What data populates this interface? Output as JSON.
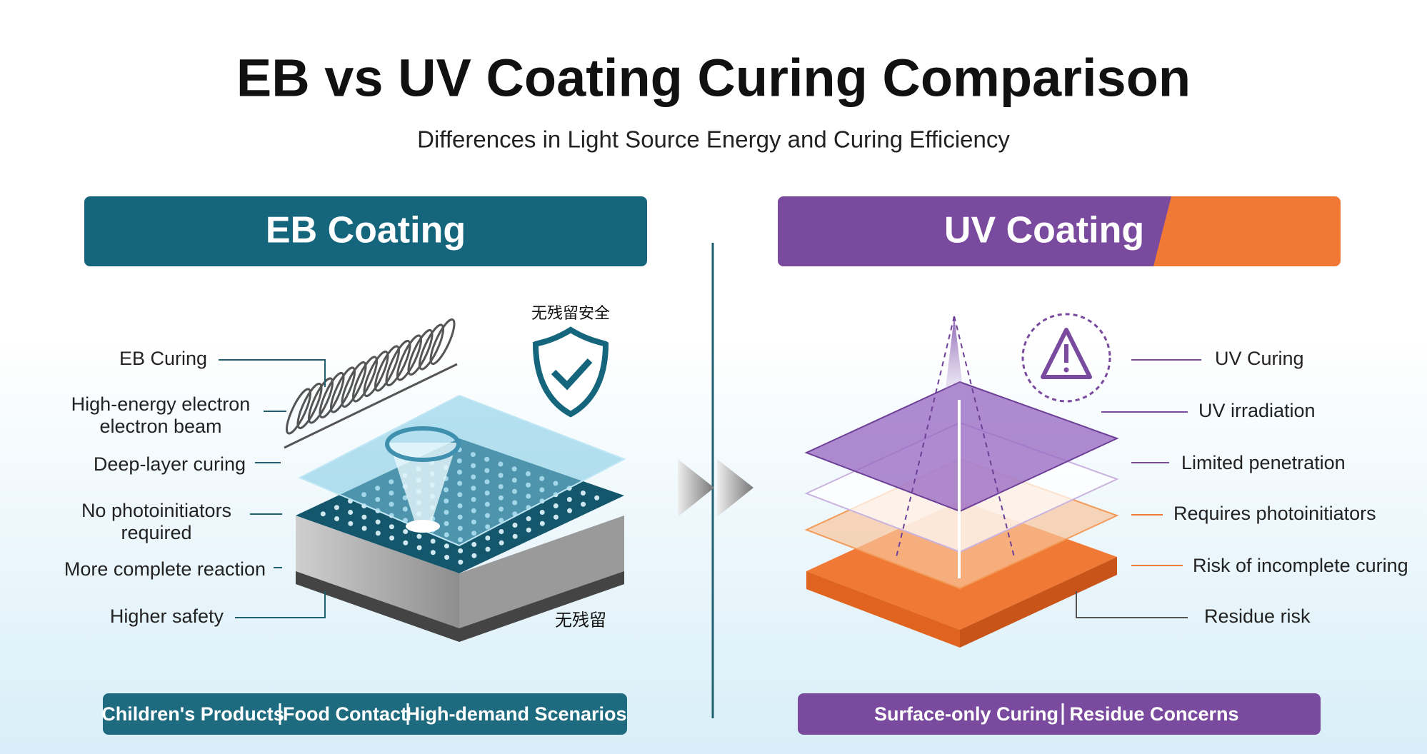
{
  "header": {
    "title": "EB vs UV Coating Curing Comparison",
    "subtitle": "Differences in Light Source Energy and Curing Efficiency"
  },
  "left": {
    "title": "EB Coating",
    "badge": "无残留安全",
    "bottom_note": "无残留",
    "labels": [
      {
        "lines": [
          "EB Curing"
        ]
      },
      {
        "lines": [
          "High-energy electron",
          "electron beam"
        ]
      },
      {
        "lines": [
          "Deep-layer curing"
        ]
      },
      {
        "lines": [
          "No photoinitiators",
          "required"
        ]
      },
      {
        "lines": [
          "More complete reaction"
        ]
      },
      {
        "lines": [
          "Higher safety"
        ]
      }
    ],
    "footer": [
      "Children's Products",
      "Food Contact",
      "High-demand Scenarios"
    ]
  },
  "right": {
    "title": "UV Coating",
    "labels": [
      {
        "lines": [
          "UV Curing"
        ]
      },
      {
        "lines": [
          "UV irradiation"
        ]
      },
      {
        "lines": [
          "Limited penetration"
        ]
      },
      {
        "lines": [
          "Requires photoinitiators"
        ]
      },
      {
        "lines": [
          "Risk of incomplete curing"
        ]
      },
      {
        "lines": [
          "Residue risk"
        ]
      }
    ],
    "footer": [
      "Surface-only Curing",
      "Residue Concerns"
    ]
  }
}
